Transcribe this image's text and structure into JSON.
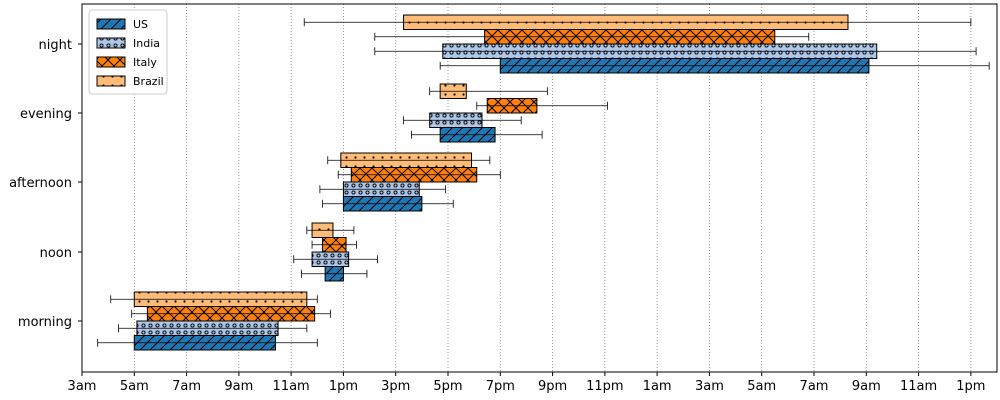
{
  "chart_data": {
    "type": "bar",
    "orientation": "horizontal",
    "categories": [
      "morning",
      "noon",
      "afternoon",
      "evening",
      "night"
    ],
    "x_unit": "hours since 3am",
    "x_ticks": [
      "3am",
      "5am",
      "7am",
      "9am",
      "11am",
      "1pm",
      "3pm",
      "5pm",
      "7pm",
      "9pm",
      "11pm",
      "1am",
      "3am",
      "5am",
      "7am",
      "9am",
      "11am",
      "1pm"
    ],
    "xlim": [
      0,
      35
    ],
    "grid": {
      "x": true,
      "y": false,
      "style": "dotted"
    },
    "legend_position": "top-left",
    "series": [
      {
        "name": "US",
        "color": "#1f77b4",
        "hatch": "diagonal",
        "bars": [
          {
            "start": 2.0,
            "end": 7.4,
            "err_low": 0.6,
            "err_high": 9.0
          },
          {
            "start": 9.3,
            "end": 10.0,
            "err_low": 8.4,
            "err_high": 10.9
          },
          {
            "start": 10.0,
            "end": 13.0,
            "err_low": 9.2,
            "err_high": 14.2
          },
          {
            "start": 13.7,
            "end": 15.8,
            "err_low": 12.6,
            "err_high": 17.6
          },
          {
            "start": 16.0,
            "end": 30.1,
            "err_low": 13.7,
            "err_high": 34.7
          }
        ]
      },
      {
        "name": "India",
        "color": "#aec7e8",
        "hatch": "dots",
        "bars": [
          {
            "start": 2.1,
            "end": 7.5,
            "err_low": 1.4,
            "err_high": 8.6
          },
          {
            "start": 8.8,
            "end": 10.2,
            "err_low": 8.1,
            "err_high": 11.3
          },
          {
            "start": 10.0,
            "end": 12.9,
            "err_low": 9.1,
            "err_high": 13.9
          },
          {
            "start": 13.3,
            "end": 15.3,
            "err_low": 12.3,
            "err_high": 16.8
          },
          {
            "start": 13.8,
            "end": 30.4,
            "err_low": 11.2,
            "err_high": 34.2
          }
        ]
      },
      {
        "name": "Italy",
        "color": "#ff7f0e",
        "hatch": "crosshatch",
        "bars": [
          {
            "start": 2.5,
            "end": 8.9,
            "err_low": 1.9,
            "err_high": 9.5
          },
          {
            "start": 9.2,
            "end": 10.1,
            "err_low": 8.8,
            "err_high": 10.5
          },
          {
            "start": 10.3,
            "end": 15.1,
            "err_low": 9.8,
            "err_high": 16.0
          },
          {
            "start": 15.5,
            "end": 17.4,
            "err_low": 15.1,
            "err_high": 20.1
          },
          {
            "start": 15.4,
            "end": 26.5,
            "err_low": 11.2,
            "err_high": 27.8
          }
        ]
      },
      {
        "name": "Brazil",
        "color": "#ffbb78",
        "hatch": "small-dots",
        "bars": [
          {
            "start": 2.0,
            "end": 8.6,
            "err_low": 1.1,
            "err_high": 9.0
          },
          {
            "start": 8.8,
            "end": 9.6,
            "err_low": 8.6,
            "err_high": 10.4
          },
          {
            "start": 9.9,
            "end": 14.9,
            "err_low": 9.4,
            "err_high": 15.6
          },
          {
            "start": 13.7,
            "end": 14.7,
            "err_low": 13.3,
            "err_high": 17.8
          },
          {
            "start": 12.3,
            "end": 29.3,
            "err_low": 8.5,
            "err_high": 34.0
          }
        ]
      }
    ]
  }
}
